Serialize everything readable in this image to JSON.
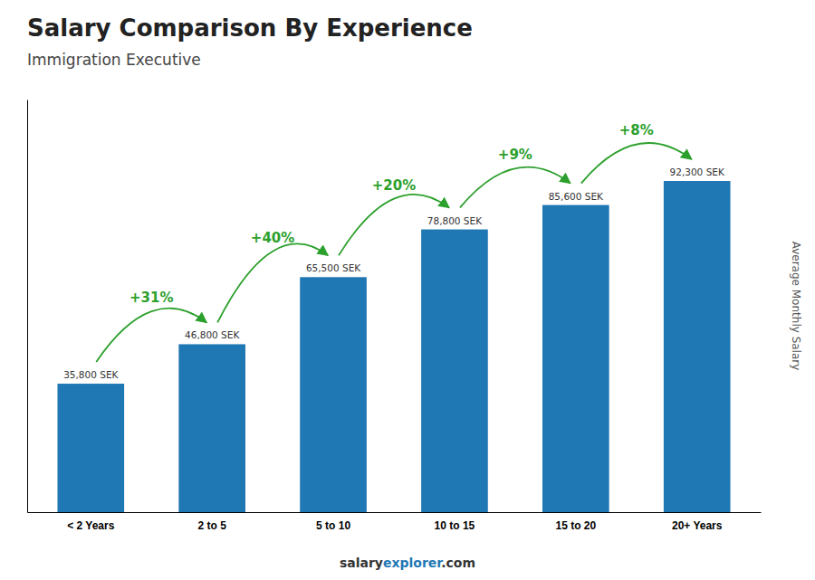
{
  "chart_data": {
    "type": "bar",
    "title": "Salary Comparison By Experience",
    "subtitle": "Immigration Executive",
    "ylabel": "Average Monthly Salary",
    "categories": [
      "< 2 Years",
      "2 to 5",
      "5 to 10",
      "10 to 15",
      "15 to 20",
      "20+ Years"
    ],
    "values": [
      35800,
      46800,
      65500,
      78800,
      85600,
      92300
    ],
    "value_labels": [
      "35,800 SEK",
      "46,800 SEK",
      "65,500 SEK",
      "78,800 SEK",
      "85,600 SEK",
      "92,300 SEK"
    ],
    "data_labels": true,
    "annotations": [
      "+31%",
      "+40%",
      "+20%",
      "+9%",
      "+8%"
    ],
    "footer": [
      "salary",
      "explorer",
      ".com"
    ],
    "ylim": [
      0,
      115000
    ],
    "tick_labels": "x"
  }
}
